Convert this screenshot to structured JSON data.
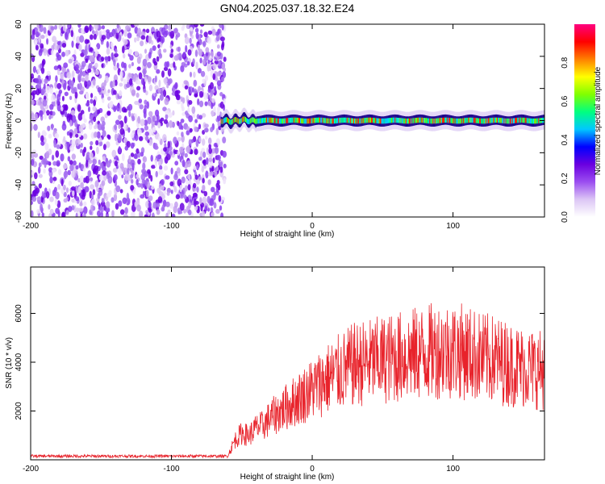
{
  "chart_data": [
    {
      "type": "heatmap",
      "title": "GN04.2025.037.18.32.E24",
      "xlabel": "Height of straight line (km)",
      "ylabel": "Frequency (Hz)",
      "xlim": [
        -200,
        165
      ],
      "ylim": [
        -60,
        60
      ],
      "xticks": [
        -200,
        -100,
        0,
        100
      ],
      "yticks": [
        60,
        40,
        20,
        0,
        -20,
        -40,
        -60
      ],
      "noise_region_x": [
        -200,
        -62
      ],
      "signal_region_x": [
        -65,
        165
      ],
      "signal_frequency_hz": 0,
      "colorbar": {
        "label": "Normalized spectral amplitude",
        "range": [
          0,
          1
        ],
        "ticks": [
          "0.0",
          "0.2",
          "0.4",
          "0.6",
          "0.8"
        ],
        "colors": [
          "#ffffff",
          "#dcc6f5",
          "#9b4ef0",
          "#6a00e0",
          "#0000ff",
          "#00c8ff",
          "#00ff80",
          "#80ff00",
          "#ffff00",
          "#ff8000",
          "#ff0000",
          "#ff0080"
        ]
      }
    },
    {
      "type": "line",
      "xlabel": "Height of straight line (km)",
      "ylabel": "SNR (10 * v/v)",
      "xlim": [
        -200,
        165
      ],
      "ylim": [
        0,
        7900
      ],
      "xticks": [
        -200,
        -100,
        0,
        100
      ],
      "yticks": [
        2000,
        4000,
        6000
      ],
      "series": [
        {
          "color": "#e8232b",
          "x": [
            -200,
            -180,
            -160,
            -140,
            -120,
            -100,
            -80,
            -60,
            -55,
            -50,
            -45,
            -40,
            -35,
            -30,
            -25,
            -20,
            -15,
            -10,
            -5,
            0,
            10,
            20,
            30,
            40,
            50,
            60,
            70,
            80,
            90,
            100,
            110,
            120,
            130,
            140,
            150,
            160,
            165
          ],
          "y": [
            150,
            150,
            150,
            150,
            150,
            150,
            150,
            150,
            800,
            1100,
            1000,
            1300,
            1400,
            1700,
            1900,
            2100,
            2300,
            2500,
            2700,
            2900,
            3300,
            3600,
            3900,
            4000,
            4100,
            4200,
            4300,
            4400,
            4500,
            4500,
            4400,
            4200,
            4100,
            3900,
            3800,
            3700,
            3700
          ]
        }
      ]
    }
  ]
}
